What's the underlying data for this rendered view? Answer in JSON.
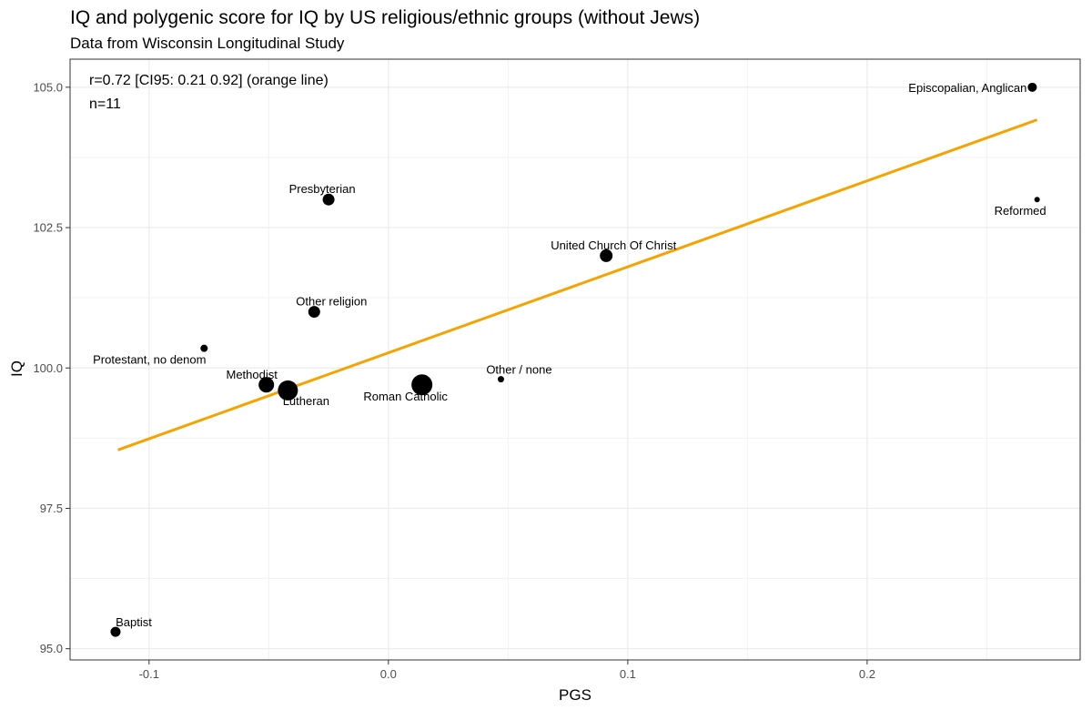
{
  "chart_data": {
    "type": "scatter",
    "title": "IQ and polygenic score for IQ by US religious/ethnic groups (without Jews)",
    "subtitle": "Data from Wisconsin Longitudinal Study",
    "xlabel": "PGS",
    "ylabel": "IQ",
    "xlim": [
      -0.133,
      0.289
    ],
    "ylim": [
      94.8,
      105.5
    ],
    "x_ticks": [
      -0.1,
      0.0,
      0.1,
      0.2
    ],
    "x_tick_labels": [
      "-0.1",
      "0.0",
      "0.1",
      "0.2"
    ],
    "y_ticks": [
      95.0,
      97.5,
      100.0,
      102.5,
      105.0
    ],
    "y_tick_labels": [
      "95.0",
      "97.5",
      "100.0",
      "102.5",
      "105.0"
    ],
    "grid": true,
    "annotations": [
      "r=0.72 [CI95: 0.21 0.92] (orange line)",
      "n=11"
    ],
    "fit_line": {
      "color": "#f5a300",
      "x": [
        -0.113,
        0.271
      ],
      "y": [
        98.54,
        104.42
      ]
    },
    "points": [
      {
        "label": "Episcopalian, Anglican",
        "x": 0.269,
        "y": 105.0,
        "size": 5,
        "anchor": "end",
        "label_dx": -6,
        "label_dy": 1
      },
      {
        "label": "Reformed",
        "x": 0.271,
        "y": 103.0,
        "size": 3,
        "anchor": "end",
        "label_dx": 10,
        "label_dy": 13
      },
      {
        "label": "Presbyterian",
        "x": -0.025,
        "y": 103.0,
        "size": 6.5,
        "anchor": "middle",
        "label_dx": -7,
        "label_dy": -11
      },
      {
        "label": "United Church Of Christ",
        "x": 0.091,
        "y": 102.0,
        "size": 7,
        "anchor": "middle",
        "label_dx": 8,
        "label_dy": -11
      },
      {
        "label": "Other religion",
        "x": -0.031,
        "y": 101.0,
        "size": 6.5,
        "anchor": "middle",
        "label_dx": 19,
        "label_dy": -11
      },
      {
        "label": "Protestant, no denom",
        "x": -0.077,
        "y": 100.35,
        "size": 4,
        "anchor": "middle",
        "label_dx": -60,
        "label_dy": 13
      },
      {
        "label": "Methodist",
        "x": -0.051,
        "y": 99.7,
        "size": 8.5,
        "anchor": "middle",
        "label_dx": -16,
        "label_dy": -11
      },
      {
        "label": "Lutheran",
        "x": -0.042,
        "y": 99.6,
        "size": 11,
        "anchor": "middle",
        "label_dx": 20,
        "label_dy": 12
      },
      {
        "label": "Roman Catholic",
        "x": 0.014,
        "y": 99.7,
        "size": 11.5,
        "anchor": "middle",
        "label_dx": -18,
        "label_dy": 13
      },
      {
        "label": "Other / none",
        "x": 0.047,
        "y": 99.8,
        "size": 3.5,
        "anchor": "middle",
        "label_dx": 20,
        "label_dy": -10
      },
      {
        "label": "Baptist",
        "x": -0.114,
        "y": 95.3,
        "size": 5.5,
        "anchor": "middle",
        "label_dx": 20,
        "label_dy": -10
      }
    ]
  }
}
